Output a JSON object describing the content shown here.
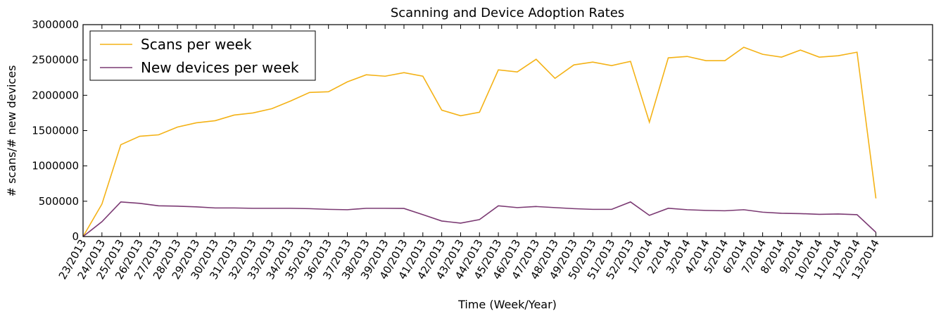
{
  "chart_data": {
    "type": "line",
    "title": "Scanning and Device Adoption Rates",
    "x_label": "Time (Week/Year)",
    "y_label": "# scans/# new devices",
    "categories": [
      "23/2013",
      "24/2013",
      "25/2013",
      "26/2013",
      "27/2013",
      "28/2013",
      "29/2013",
      "30/2013",
      "31/2013",
      "32/2013",
      "33/2013",
      "34/2013",
      "35/2013",
      "36/2013",
      "37/2013",
      "38/2013",
      "39/2013",
      "40/2013",
      "41/2013",
      "42/2013",
      "43/2013",
      "44/2013",
      "45/2013",
      "46/2013",
      "47/2013",
      "48/2013",
      "49/2013",
      "50/2013",
      "51/2013",
      "52/2013",
      "1/2014",
      "2/2014",
      "3/2014",
      "4/2014",
      "5/2014",
      "6/2014",
      "7/2014",
      "8/2014",
      "9/2014",
      "10/2014",
      "11/2014",
      "12/2014",
      "13/2014"
    ],
    "series": [
      {
        "name": "Scans per week",
        "color": "#f4b216",
        "values": [
          0,
          460000,
          1300000,
          1420000,
          1440000,
          1550000,
          1610000,
          1640000,
          1720000,
          1750000,
          1810000,
          1920000,
          2040000,
          2050000,
          2190000,
          2290000,
          2270000,
          2320000,
          2270000,
          1790000,
          1710000,
          1760000,
          2360000,
          2330000,
          2510000,
          2240000,
          2430000,
          2470000,
          2420000,
          2480000,
          1620000,
          2530000,
          2550000,
          2490000,
          2490000,
          2680000,
          2580000,
          2540000,
          2640000,
          2540000,
          2560000,
          2610000,
          540000
        ]
      },
      {
        "name": "New devices per week",
        "color": "#7b3a73",
        "values": [
          0,
          210000,
          490000,
          470000,
          435000,
          430000,
          420000,
          405000,
          405000,
          400000,
          400000,
          400000,
          395000,
          385000,
          380000,
          400000,
          400000,
          398000,
          310000,
          220000,
          190000,
          240000,
          435000,
          410000,
          425000,
          410000,
          395000,
          385000,
          385000,
          490000,
          300000,
          400000,
          380000,
          370000,
          365000,
          380000,
          345000,
          330000,
          325000,
          315000,
          320000,
          310000,
          60000
        ]
      }
    ],
    "ylim": [
      0,
      3000000
    ],
    "yticks": [
      0,
      500000,
      1000000,
      1500000,
      2000000,
      2500000,
      3000000
    ],
    "legend": "upper left"
  }
}
